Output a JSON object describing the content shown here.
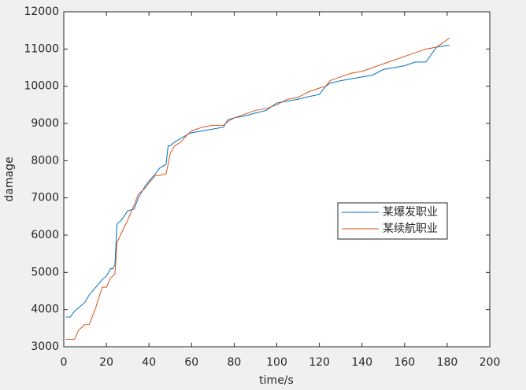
{
  "chart_data": {
    "type": "line",
    "x_label": "time/s",
    "y_label": "damage",
    "x": [
      1,
      3,
      5,
      7,
      10,
      12,
      15,
      18,
      20,
      22,
      23,
      24,
      25,
      27,
      30,
      33,
      35,
      38,
      40,
      43,
      45,
      48,
      49,
      50,
      52,
      55,
      58,
      60,
      65,
      70,
      75,
      77,
      80,
      85,
      90,
      95,
      100,
      105,
      110,
      115,
      120,
      123,
      125,
      130,
      135,
      140,
      145,
      150,
      155,
      160,
      165,
      170,
      175,
      180,
      181
    ],
    "series": [
      {
        "name": "某爆发职业",
        "color": "#0072bd",
        "values": [
          3800,
          3800,
          3950,
          4050,
          4200,
          4400,
          4600,
          4800,
          4900,
          5100,
          5100,
          5200,
          6300,
          6400,
          6650,
          6700,
          7000,
          7300,
          7450,
          7650,
          7800,
          7900,
          8400,
          8400,
          8500,
          8600,
          8700,
          8750,
          8800,
          8850,
          8900,
          9100,
          9150,
          9200,
          9280,
          9350,
          9550,
          9600,
          9650,
          9720,
          9780,
          10000,
          10080,
          10150,
          10200,
          10250,
          10300,
          10450,
          10500,
          10550,
          10650,
          10650,
          11050,
          11100,
          11100
        ]
      },
      {
        "name": "某续航职业",
        "color": "#d95319",
        "values": [
          3200,
          3200,
          3200,
          3450,
          3600,
          3600,
          4050,
          4600,
          4600,
          4850,
          4900,
          4950,
          5800,
          6050,
          6400,
          6800,
          7100,
          7250,
          7400,
          7600,
          7600,
          7650,
          7900,
          8200,
          8400,
          8500,
          8700,
          8800,
          8900,
          8950,
          8950,
          9050,
          9150,
          9250,
          9350,
          9400,
          9500,
          9650,
          9700,
          9850,
          9950,
          10000,
          10150,
          10250,
          10350,
          10400,
          10500,
          10600,
          10700,
          10800,
          10900,
          11000,
          11050,
          11250,
          11300
        ]
      }
    ],
    "xlim": [
      0,
      200
    ],
    "xticks": [
      0,
      20,
      40,
      60,
      80,
      100,
      120,
      140,
      160,
      180,
      200
    ],
    "ylim": [
      3000,
      12000
    ],
    "yticks": [
      3000,
      4000,
      5000,
      6000,
      7000,
      8000,
      9000,
      10000,
      11000,
      12000
    ],
    "legend_location": "east"
  }
}
